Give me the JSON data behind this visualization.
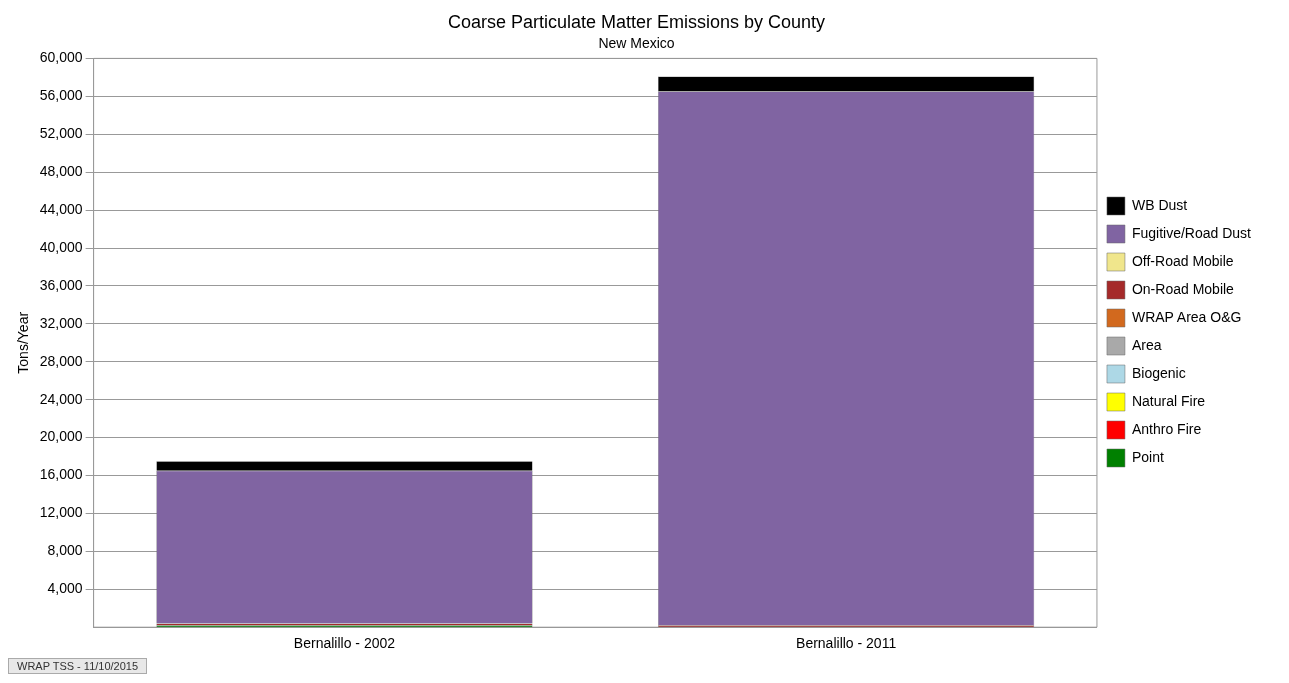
{
  "chart_data": {
    "type": "bar",
    "title": "Coarse Particulate Matter Emissions by County",
    "subtitle": "New Mexico",
    "ylabel": "Tons/Year",
    "categories": [
      "Bernalillo - 2002",
      "Bernalillo - 2011"
    ],
    "stacked": true,
    "ylim": [
      0,
      60000
    ],
    "yticks": [
      {
        "value": 4000,
        "label": "4,000"
      },
      {
        "value": 8000,
        "label": "8,000"
      },
      {
        "value": 12000,
        "label": "12,000"
      },
      {
        "value": 16000,
        "label": "16,000"
      },
      {
        "value": 20000,
        "label": "20,000"
      },
      {
        "value": 24000,
        "label": "24,000"
      },
      {
        "value": 28000,
        "label": "28,000"
      },
      {
        "value": 32000,
        "label": "32,000"
      },
      {
        "value": 36000,
        "label": "36,000"
      },
      {
        "value": 40000,
        "label": "40,000"
      },
      {
        "value": 44000,
        "label": "44,000"
      },
      {
        "value": 48000,
        "label": "48,000"
      },
      {
        "value": 52000,
        "label": "52,000"
      },
      {
        "value": 56000,
        "label": "56,000"
      },
      {
        "value": 60000,
        "label": "60,000"
      }
    ],
    "grid": "y",
    "legend": "right",
    "annotations": [
      "WRAP TSS - 11/10/2015"
    ],
    "series": [
      {
        "name": "Point",
        "color": "#008000",
        "values": [
          200,
          null
        ]
      },
      {
        "name": "Anthro Fire",
        "color": "#ff0000",
        "values": [
          0,
          0
        ]
      },
      {
        "name": "Natural Fire",
        "color": "#ffff00",
        "values": [
          0,
          0
        ]
      },
      {
        "name": "Biogenic",
        "color": "#add8e6",
        "values": [
          0,
          0
        ]
      },
      {
        "name": "Area",
        "color": "#a9a9a9",
        "values": [
          0,
          0
        ]
      },
      {
        "name": "WRAP Area O&G",
        "color": "#d2691e",
        "values": [
          0,
          0
        ]
      },
      {
        "name": "On-Road Mobile",
        "color": "#a52a2a",
        "values": [
          200,
          200
        ]
      },
      {
        "name": "Off-Road Mobile",
        "color": "#f0e68c",
        "values": [
          0,
          0
        ]
      },
      {
        "name": "Fugitive/Road Dust",
        "color": "#8064a2",
        "values": [
          16100,
          56300
        ]
      },
      {
        "name": "WB Dust",
        "color": "#000000",
        "values": [
          1000,
          1600
        ]
      }
    ]
  }
}
